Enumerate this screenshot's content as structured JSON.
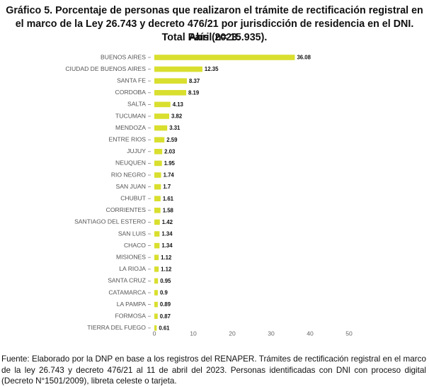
{
  "chart_data": {
    "type": "bar",
    "orientation": "horizontal",
    "title": "Gráfico 5. Porcentaje de personas que realizaron el trámite de rectificación registral en el marco de la Ley 26.743 y decreto 476/21 por jurisdicción de residencia en el DNI. Abril 2023.",
    "subtitle": "Total País (n= 15.935).",
    "categories": [
      "BUENOS AIRES",
      "CIUDAD DE BUENOS AIRES",
      "SANTA FE",
      "CORDOBA",
      "SALTA",
      "TUCUMAN",
      "MENDOZA",
      "ENTRE RIOS",
      "JUJUY",
      "NEUQUEN",
      "RIO NEGRO",
      "SAN JUAN",
      "CHUBUT",
      "CORRIENTES",
      "SANTIAGO DEL ESTERO",
      "SAN LUIS",
      "CHACO",
      "MISIONES",
      "LA RIOJA",
      "SANTA CRUZ",
      "CATAMARCA",
      "LA PAMPA",
      "FORMOSA",
      "TIERRA DEL FUEGO"
    ],
    "values": [
      36.08,
      12.35,
      8.37,
      8.19,
      4.13,
      3.82,
      3.31,
      2.59,
      2.03,
      1.95,
      1.74,
      1.7,
      1.61,
      1.58,
      1.42,
      1.34,
      1.34,
      1.12,
      1.12,
      0.95,
      0.9,
      0.89,
      0.87,
      0.61
    ],
    "color": "#d9df2e",
    "xlim": [
      0,
      50
    ],
    "xticks": [
      0,
      10,
      20,
      30,
      40,
      50
    ],
    "grid": false,
    "note": "Fuente: Elaborado por la DNP en base a los registros del RENAPER. Trámites de rectificación registral en el marco de la ley 26.743 y decreto 476/21 al 11 de abril del 2023. Personas identificadas con DNI con proceso digital (Decreto N°1501/2009), libreta celeste o tarjeta."
  }
}
